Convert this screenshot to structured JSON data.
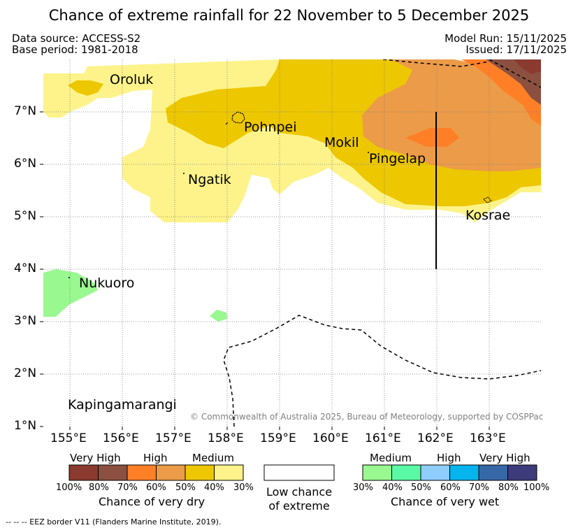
{
  "title": "Chance of extreme rainfall for 22 November to 5 December 2025",
  "meta": {
    "data_source": "Data source: ACCESS-S2",
    "base_period": "Base period: 1981-2018",
    "model_run": "Model Run: 15/11/2025",
    "issued": "Issued: 17/11/2025"
  },
  "map": {
    "lat_labels": [
      "7°N",
      "6°N",
      "5°N",
      "4°N",
      "3°N",
      "2°N",
      "1°N"
    ],
    "lon_labels": [
      "155°E",
      "156°E",
      "157°E",
      "158°E",
      "159°E",
      "160°E",
      "161°E",
      "162°E",
      "163°E"
    ],
    "places": {
      "oroluk": "Oroluk",
      "pohnpei": "Pohnpei",
      "mokil": "Mokil",
      "pingelap": "Pingelap",
      "ngatik": "Ngatik",
      "kosrae": "Kosrae",
      "nukuoro": "Nukuoro",
      "kapingamarangi": "Kapingamarangi"
    },
    "copyright": "© Commonwealth of Australia 2025, Bureau of Meteorology, supported by COSPPac"
  },
  "legend": {
    "dry": {
      "categories": [
        "Very High",
        "High",
        "Medium"
      ],
      "percent_labels": [
        "100%",
        "80%",
        "70%",
        "60%",
        "50%",
        "40%",
        "30%"
      ],
      "colors": [
        "#8b3a2f",
        "#8b5040",
        "#ff7f27",
        "#ec9b48",
        "#edc700",
        "#fdf38a"
      ],
      "caption": "Chance of very dry"
    },
    "neutral": {
      "line1": "Low chance",
      "line2": "of extreme"
    },
    "wet": {
      "categories": [
        "Medium",
        "High",
        "Very High"
      ],
      "percent_labels": [
        "30%",
        "40%",
        "50%",
        "60%",
        "70%",
        "80%",
        "100%"
      ],
      "colors": [
        "#99f890",
        "#5af9a5",
        "#8ecdfd",
        "#06b4ee",
        "#3668a6",
        "#3d3b7c"
      ],
      "caption": "Chance of very wet"
    },
    "eez": "--  --  -- EEZ border V11 (Flanders Marine Institute, 2019)."
  }
}
